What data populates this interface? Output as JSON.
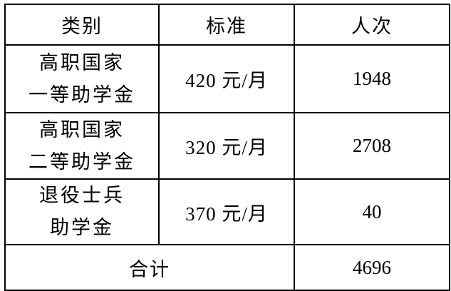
{
  "table": {
    "headers": [
      {
        "label": "类别"
      },
      {
        "label": "标准"
      },
      {
        "label": "人次"
      }
    ],
    "rows": [
      {
        "category_line1": "高职国家",
        "category_line2": "一等助学金",
        "standard": "420 元/月",
        "count": "1948"
      },
      {
        "category_line1": "高职国家",
        "category_line2": "二等助学金",
        "standard": "320 元/月",
        "count": "2708"
      },
      {
        "category_line1": "退役士兵",
        "category_line2": "助学金",
        "standard": "370 元/月",
        "count": "40"
      }
    ],
    "footer": {
      "label": "合计",
      "total": "4696"
    }
  },
  "colors": {
    "border": "#000000",
    "text": "#000000",
    "background": "#ffffff"
  }
}
